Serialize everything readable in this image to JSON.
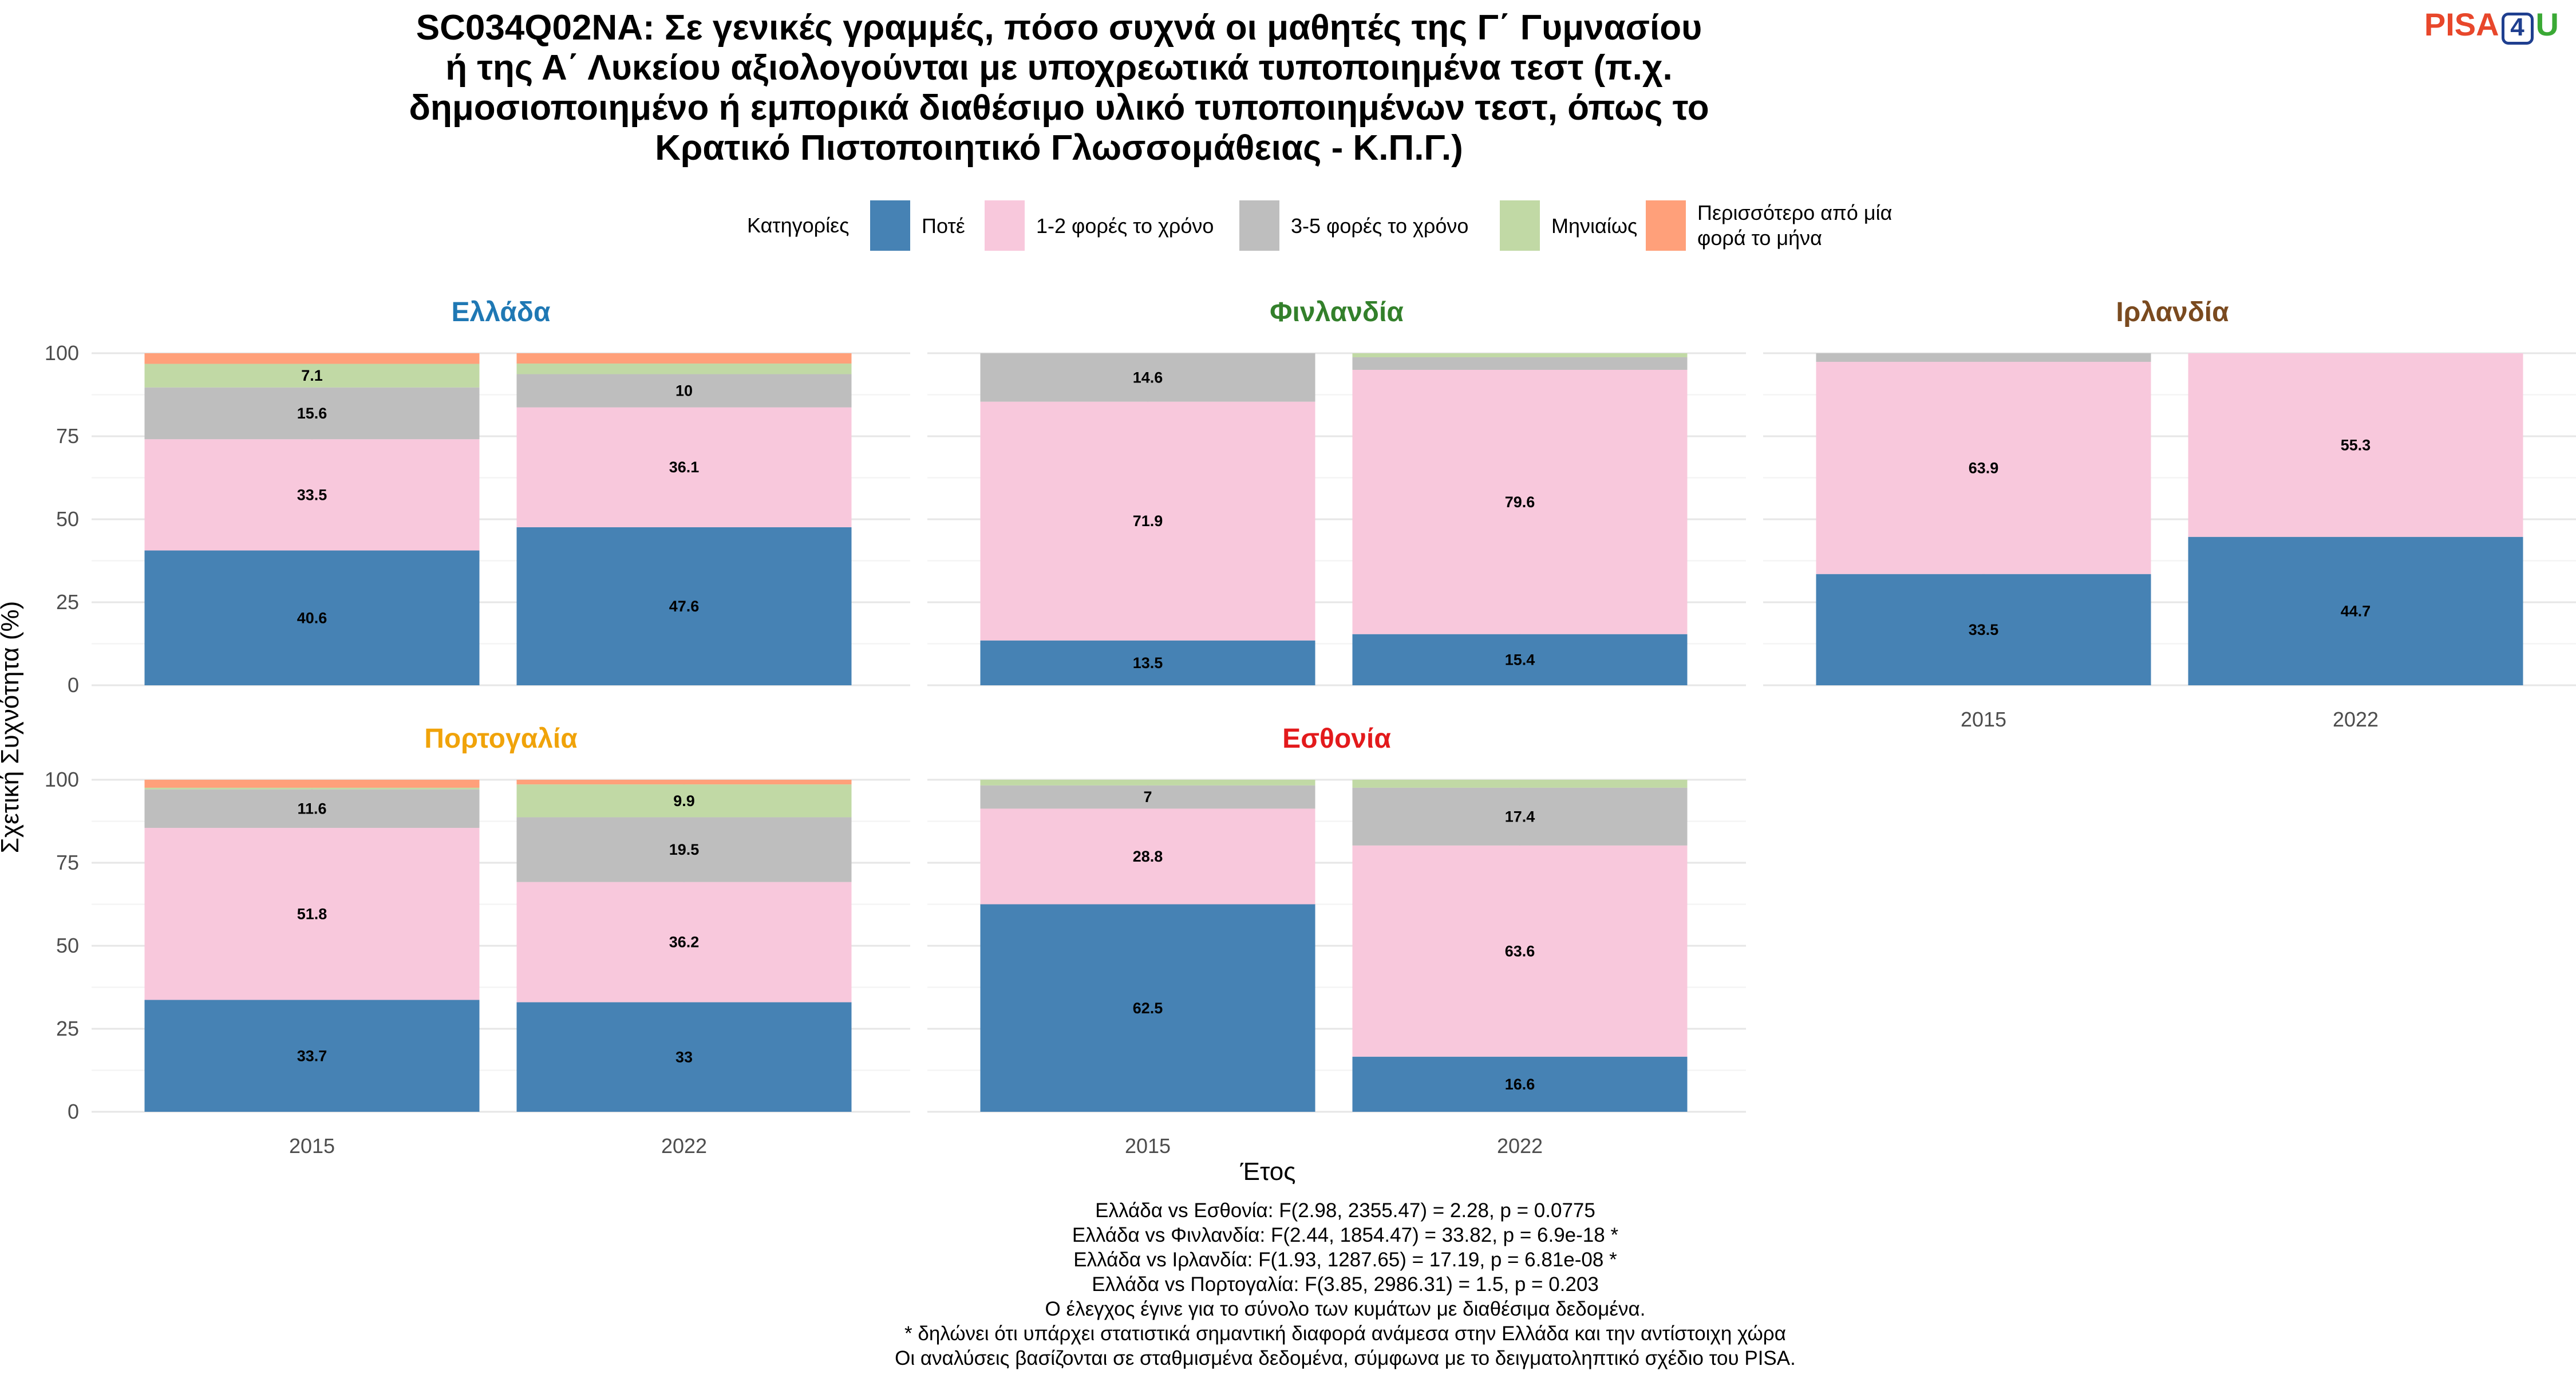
{
  "title_lines": [
    "SC034Q02NA: Σε γενικές γραμμές, πόσο συχνά οι μαθητές της Γ΄ Γυμνασίου",
    "ή της Α΄ Λυκείου αξιολογούνται με υποχρεωτικά τυποποιημένα τεστ (π.χ.",
    "δημοσιοποιημένο ή εμπορικά διαθέσιμο υλικό τυποποιημένων τεστ, όπως το",
    "Κρατικό Πιστοποιητικό Γλωσσομάθειας - Κ.Π.Γ.)"
  ],
  "logo": {
    "part1": "PISA",
    "part2": "4",
    "part3": "U"
  },
  "legend": {
    "title": "Κατηγορίες",
    "items": [
      {
        "label": "Ποτέ",
        "color": "#4682b4"
      },
      {
        "label": "1-2 φορές το χρόνο",
        "color": "#f8c8dc"
      },
      {
        "label": "3-5 φορές το χρόνο",
        "color": "#bebebe"
      },
      {
        "label": "Μηνιαίως",
        "color": "#c1d9a5"
      },
      {
        "label": "Περισσότερο από μία φορά το μήνα",
        "label_lines": [
          "Περισσότερο από μία",
          "φορά το μήνα"
        ],
        "color": "#ffa07a"
      }
    ]
  },
  "notes": [
    "Ελλάδα vs Εσθονία: F(2.98, 2355.47) = 2.28, p = 0.0775",
    "Ελλάδα vs Φινλανδία: F(2.44, 1854.47) = 33.82, p = 6.9e-18 *",
    "Ελλάδα vs Ιρλανδία: F(1.93, 1287.65) = 17.19, p = 6.81e-08 *",
    "Ελλάδα vs Πορτογαλία: F(3.85, 2986.31) = 1.5, p = 0.203",
    "Ο έλεγχος έγινε για το σύνολο των κυμάτων με διαθέσιμα δεδομένα.",
    "* δηλώνει ότι υπάρχει στατιστικά σημαντική διαφορά ανάμεσα στην Ελλάδα και την αντίστοιχη χώρα",
    "Οι αναλύσεις βασίζονται σε σταθμισμένα δεδομένα, σύμφωνα με το δειγματοληπτικό σχέδιο του PISA."
  ],
  "chart_data": {
    "type": "bar",
    "stacked": true,
    "xlabel": "Έτος",
    "ylabel": "Σχετική Συχνότητα (%)",
    "ylim": [
      0,
      100
    ],
    "yticks": [
      0,
      25,
      50,
      75,
      100
    ],
    "categories": [
      "2015",
      "2022"
    ],
    "grid": true,
    "legend_position": "top",
    "facets": [
      {
        "title": "Ελλάδα",
        "title_color": "#1f78b4",
        "series": [
          {
            "name": "Ποτέ",
            "values": [
              40.6,
              47.6
            ]
          },
          {
            "name": "1-2 φορές το χρόνο",
            "values": [
              33.5,
              36.1
            ]
          },
          {
            "name": "3-5 φορές το χρόνο",
            "values": [
              15.6,
              10
            ]
          },
          {
            "name": "Μηνιαίως",
            "values": [
              7.1,
              3.2
            ]
          },
          {
            "name": "Περισσότερο από μία φορά το μήνα",
            "values": [
              3.2,
              3.1
            ]
          }
        ]
      },
      {
        "title": "Φινλανδία",
        "title_color": "#33802b",
        "series": [
          {
            "name": "Ποτέ",
            "values": [
              13.5,
              15.4
            ]
          },
          {
            "name": "1-2 φορές το χρόνο",
            "values": [
              71.9,
              79.6
            ]
          },
          {
            "name": "3-5 φορές το χρόνο",
            "values": [
              14.6,
              3.8
            ]
          },
          {
            "name": "Μηνιαίως",
            "values": [
              0,
              1.2
            ]
          },
          {
            "name": "Περισσότερο από μία φορά το μήνα",
            "values": [
              0,
              0
            ]
          }
        ]
      },
      {
        "title": "Ιρλανδία",
        "title_color": "#7a4a1f",
        "series": [
          {
            "name": "Ποτέ",
            "values": [
              33.5,
              44.7
            ]
          },
          {
            "name": "1-2 φορές το χρόνο",
            "values": [
              63.9,
              55.3
            ]
          },
          {
            "name": "3-5 φορές το χρόνο",
            "values": [
              2.6,
              0
            ]
          },
          {
            "name": "Μηνιαίως",
            "values": [
              0,
              0
            ]
          },
          {
            "name": "Περισσότερο από μία φορά το μήνα",
            "values": [
              0,
              0
            ]
          }
        ]
      },
      {
        "title": "Πορτογαλία",
        "title_color": "#f0a30a",
        "series": [
          {
            "name": "Ποτέ",
            "values": [
              33.7,
              33
            ]
          },
          {
            "name": "1-2 φορές το χρόνο",
            "values": [
              51.8,
              36.2
            ]
          },
          {
            "name": "3-5 φορές το χρόνο",
            "values": [
              11.6,
              19.5
            ]
          },
          {
            "name": "Μηνιαίως",
            "values": [
              0.5,
              9.9
            ]
          },
          {
            "name": "Περισσότερο από μία φορά το μήνα",
            "values": [
              2.4,
              1.4
            ]
          }
        ]
      },
      {
        "title": "Εσθονία",
        "title_color": "#e31a1c",
        "series": [
          {
            "name": "Ποτέ",
            "values": [
              62.5,
              16.6
            ]
          },
          {
            "name": "1-2 φορές το χρόνο",
            "values": [
              28.8,
              63.6
            ]
          },
          {
            "name": "3-5 φορές το χρόνο",
            "values": [
              7,
              17.4
            ]
          },
          {
            "name": "Μηνιαίως",
            "values": [
              1.7,
              2.4
            ]
          },
          {
            "name": "Περισσότερο από μία φορά το μήνα",
            "values": [
              0,
              0
            ]
          }
        ]
      }
    ]
  }
}
